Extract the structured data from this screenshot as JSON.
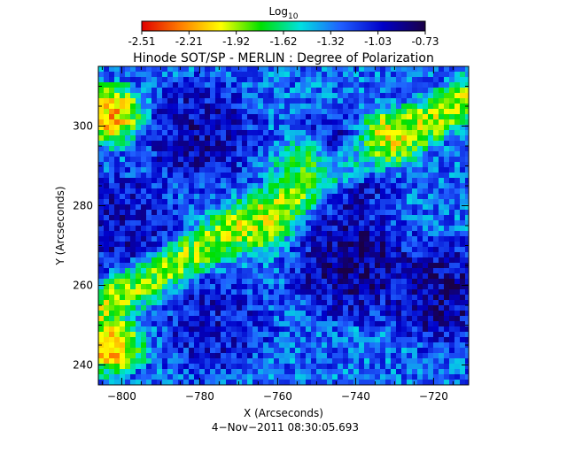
{
  "chart_data": {
    "type": "heatmap",
    "title": "Hinode SOT/SP - MERLIN : Degree of Polarization",
    "colorbar": {
      "label_base": "Log",
      "label_sub": "10",
      "ticks": [
        "-2.51",
        "-2.21",
        "-1.92",
        "-1.62",
        "-1.32",
        "-1.03",
        "-0.73"
      ],
      "range": [
        -2.51,
        -0.73
      ],
      "colors": [
        "#e00000",
        "#ff8000",
        "#ffff00",
        "#00e000",
        "#00e0e0",
        "#2060ff",
        "#0000c8",
        "#1a0046"
      ]
    },
    "xlabel": "X (Arcseconds)",
    "ylabel": "Y (Arcseconds)",
    "xlim": [
      -806,
      -711
    ],
    "ylim": [
      235,
      315
    ],
    "xticks": [
      -800,
      -780,
      -760,
      -740,
      -720
    ],
    "yticks": [
      240,
      260,
      280,
      300
    ],
    "xtick_labels": [
      "−800",
      "−780",
      "−760",
      "−740",
      "−720"
    ],
    "ytick_labels": [
      "240",
      "260",
      "280",
      "300"
    ],
    "footer": "4−Nov−2011 08:30:05.693",
    "features": [
      {
        "region": "dark-blob",
        "x": -741,
        "y": 265,
        "level": -0.75
      },
      {
        "region": "dark-blob",
        "x": -780,
        "y": 298,
        "level": -0.85
      },
      {
        "region": "dark-blob",
        "x": -744,
        "y": 290,
        "level": -0.8
      },
      {
        "region": "dark-blob",
        "x": -800,
        "y": 275,
        "level": -0.9
      },
      {
        "region": "dark-blob",
        "x": -718,
        "y": 258,
        "level": -0.8
      },
      {
        "region": "dark-blob",
        "x": -776,
        "y": 250,
        "level": -0.95
      },
      {
        "region": "bright-strip",
        "x": -803,
        "y": 303,
        "level": -2.4
      },
      {
        "region": "bright-strip",
        "x": -803,
        "y": 245,
        "level": -2.4
      },
      {
        "region": "bright-strip",
        "x": -752,
        "y": 290,
        "level": -2.2
      },
      {
        "region": "bright-strip",
        "x": -732,
        "y": 297,
        "level": -2.3
      },
      {
        "region": "bright-strip",
        "x": -765,
        "y": 275,
        "level": -2.0
      }
    ]
  }
}
